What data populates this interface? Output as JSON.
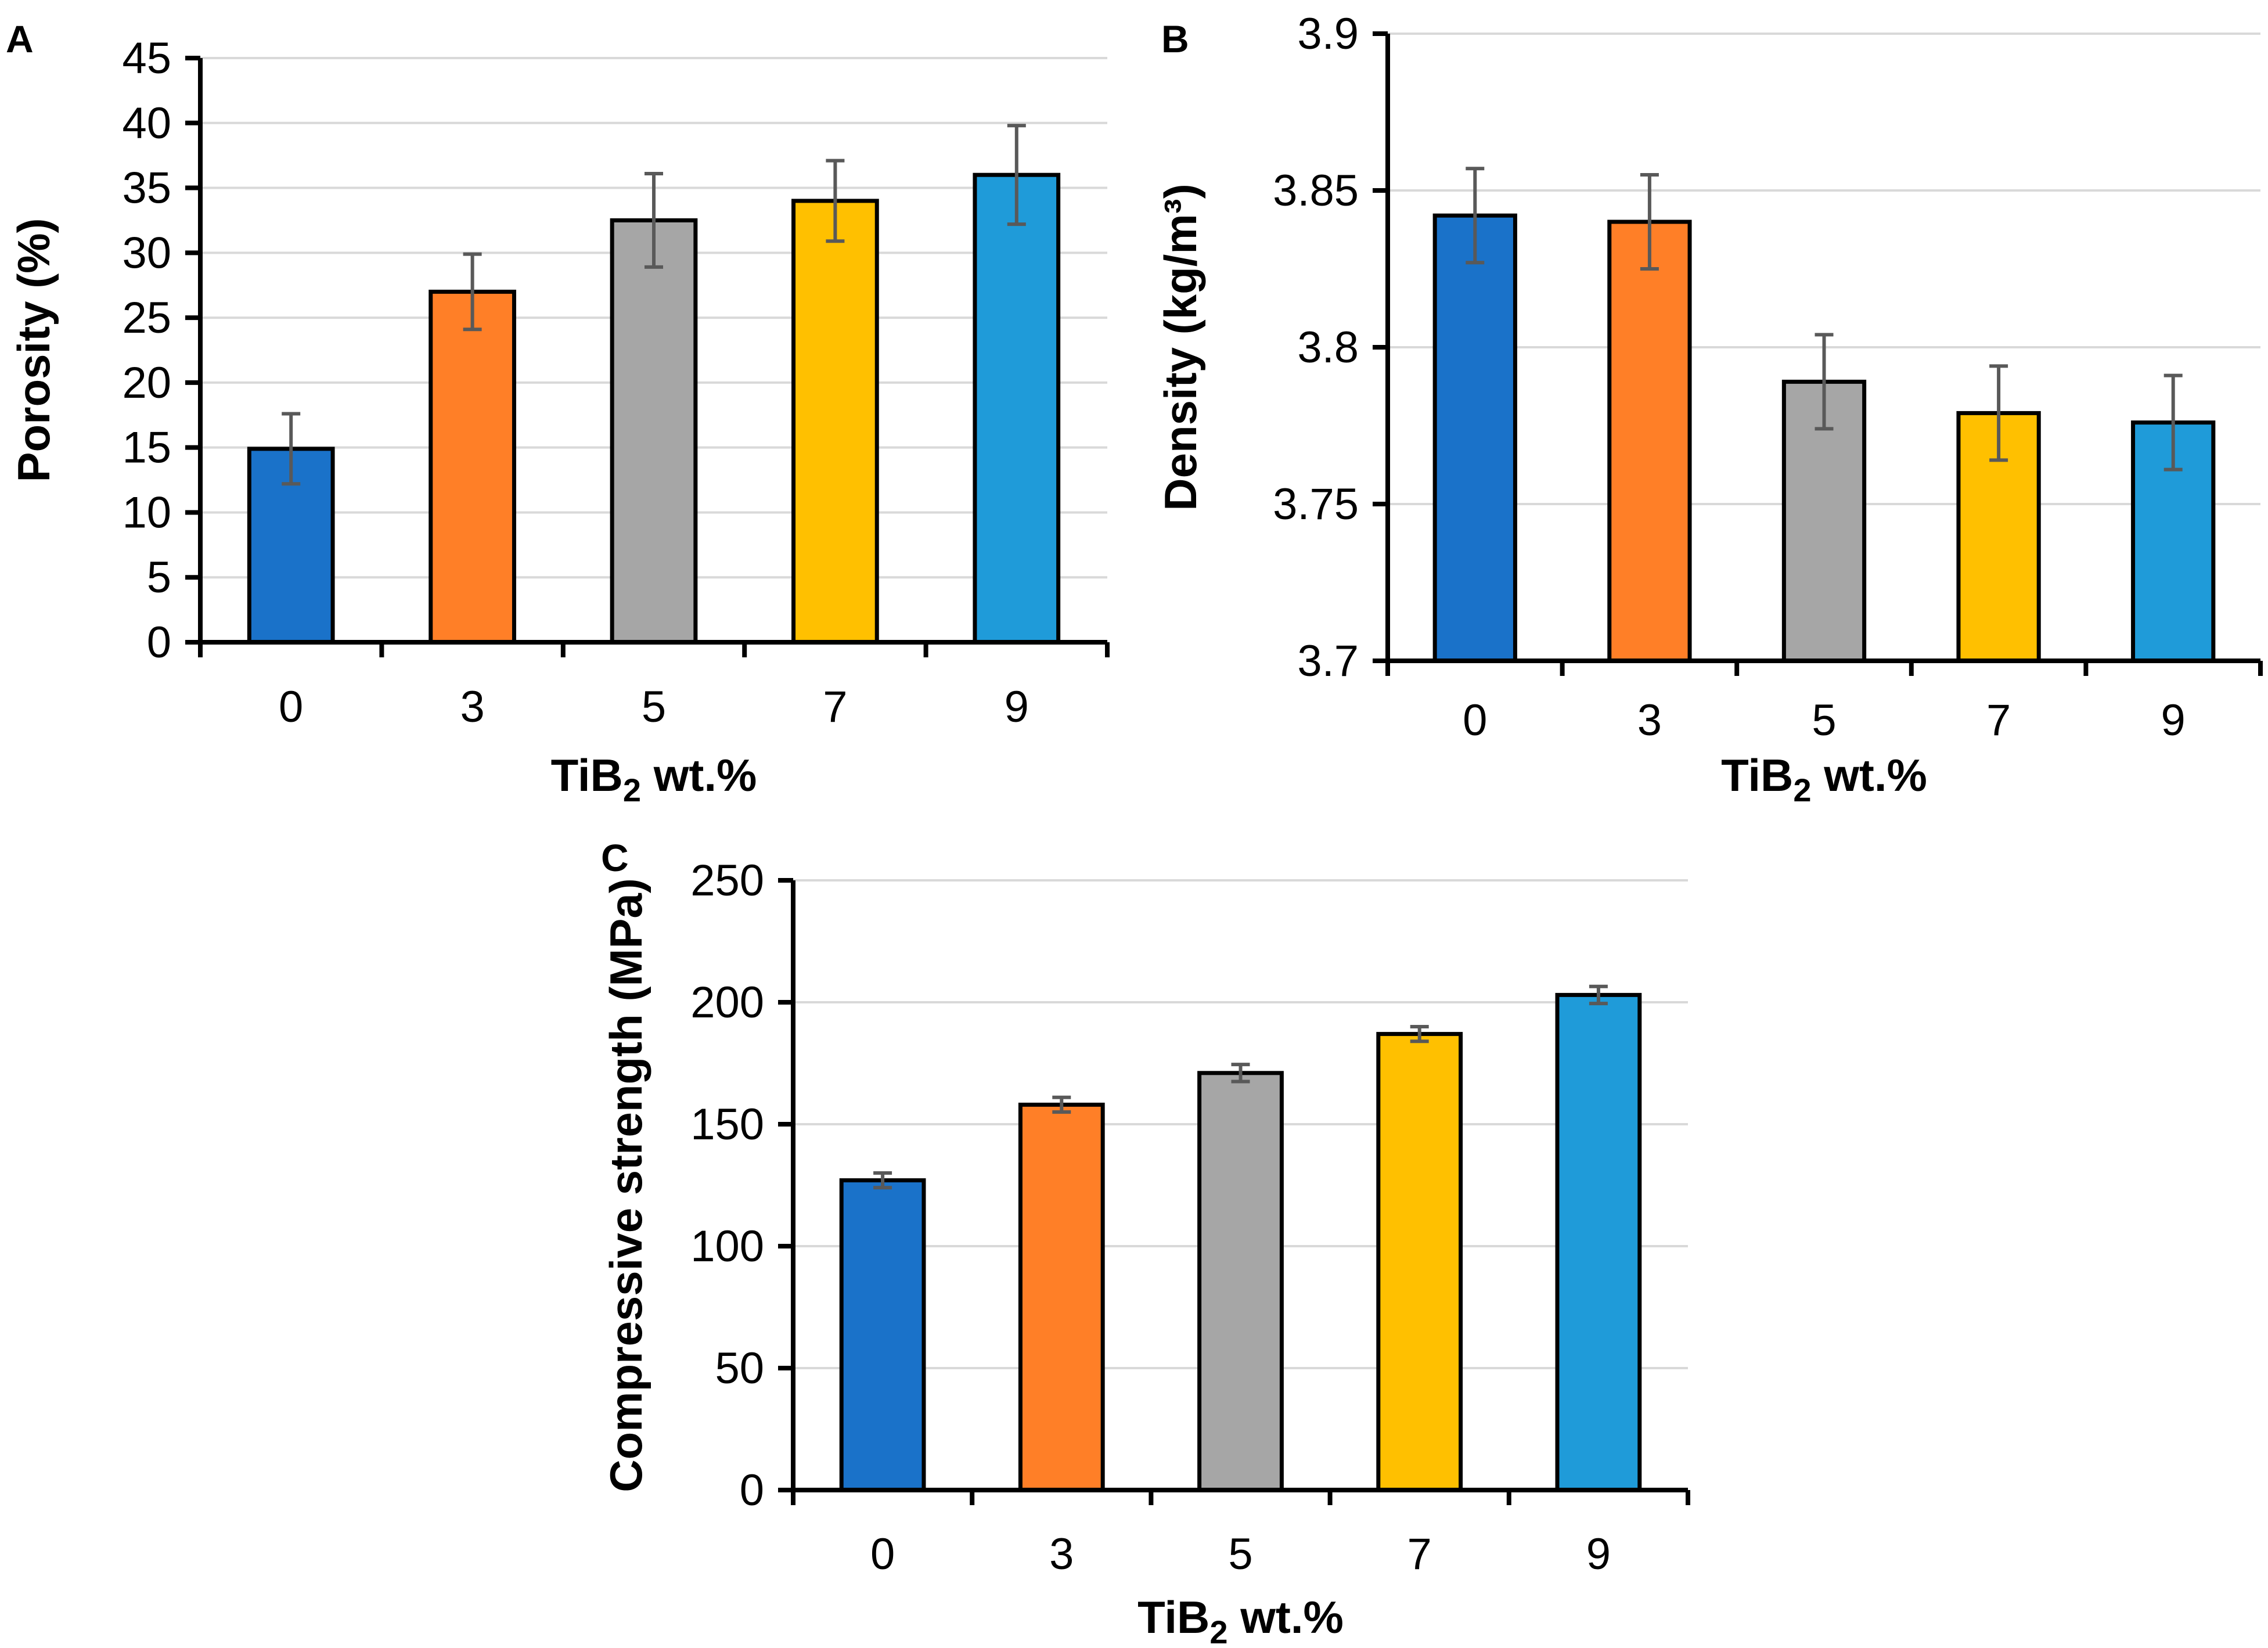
{
  "chart_data": [
    {
      "panel": "A",
      "type": "bar",
      "categories": [
        "0",
        "3",
        "5",
        "7",
        "9"
      ],
      "values": [
        14.9,
        27.0,
        32.5,
        34.0,
        36.0
      ],
      "errors": [
        2.7,
        2.9,
        3.6,
        3.1,
        3.8
      ],
      "colors": [
        "#1a72c9",
        "#ff7f27",
        "#a6a6a6",
        "#ffc000",
        "#1f9bd9"
      ],
      "xlabel_main": "TiB",
      "xlabel_sub": "2",
      "xlabel_rest": " wt.%",
      "ylabel": "Porosity (%)",
      "ylim": [
        0,
        45
      ],
      "ytick_step": 5,
      "yticks": [
        "0",
        "5",
        "10",
        "15",
        "20",
        "25",
        "30",
        "35",
        "40",
        "45"
      ],
      "grid": true
    },
    {
      "panel": "B",
      "type": "bar",
      "categories": [
        "0",
        "3",
        "5",
        "7",
        "9"
      ],
      "values": [
        3.842,
        3.84,
        3.789,
        3.779,
        3.776
      ],
      "errors": [
        0.015,
        0.015,
        0.015,
        0.015,
        0.015
      ],
      "colors": [
        "#1a72c9",
        "#ff7f27",
        "#a6a6a6",
        "#ffc000",
        "#1f9bd9"
      ],
      "xlabel_main": "TiB",
      "xlabel_sub": "2",
      "xlabel_rest": " wt.%",
      "ylabel": "Density (kg/m³)",
      "ylim": [
        3.7,
        3.9
      ],
      "ytick_step": 0.05,
      "yticks": [
        "3.7",
        "3.75",
        "3.8",
        "3.85",
        "3.9"
      ],
      "grid": true
    },
    {
      "panel": "C",
      "type": "bar",
      "categories": [
        "0",
        "3",
        "5",
        "7",
        "9"
      ],
      "values": [
        127,
        158,
        171,
        187,
        203
      ],
      "errors": [
        3,
        3,
        3.5,
        3,
        3.5
      ],
      "colors": [
        "#1a72c9",
        "#ff7f27",
        "#a6a6a6",
        "#ffc000",
        "#1f9bd9"
      ],
      "xlabel_main": "TiB",
      "xlabel_sub": "2",
      "xlabel_rest": " wt.%",
      "ylabel": "Compressive strength (MPa)",
      "ylim": [
        0,
        250
      ],
      "ytick_step": 50,
      "yticks": [
        "0",
        "50",
        "100",
        "150",
        "200",
        "250"
      ],
      "grid": true
    }
  ]
}
